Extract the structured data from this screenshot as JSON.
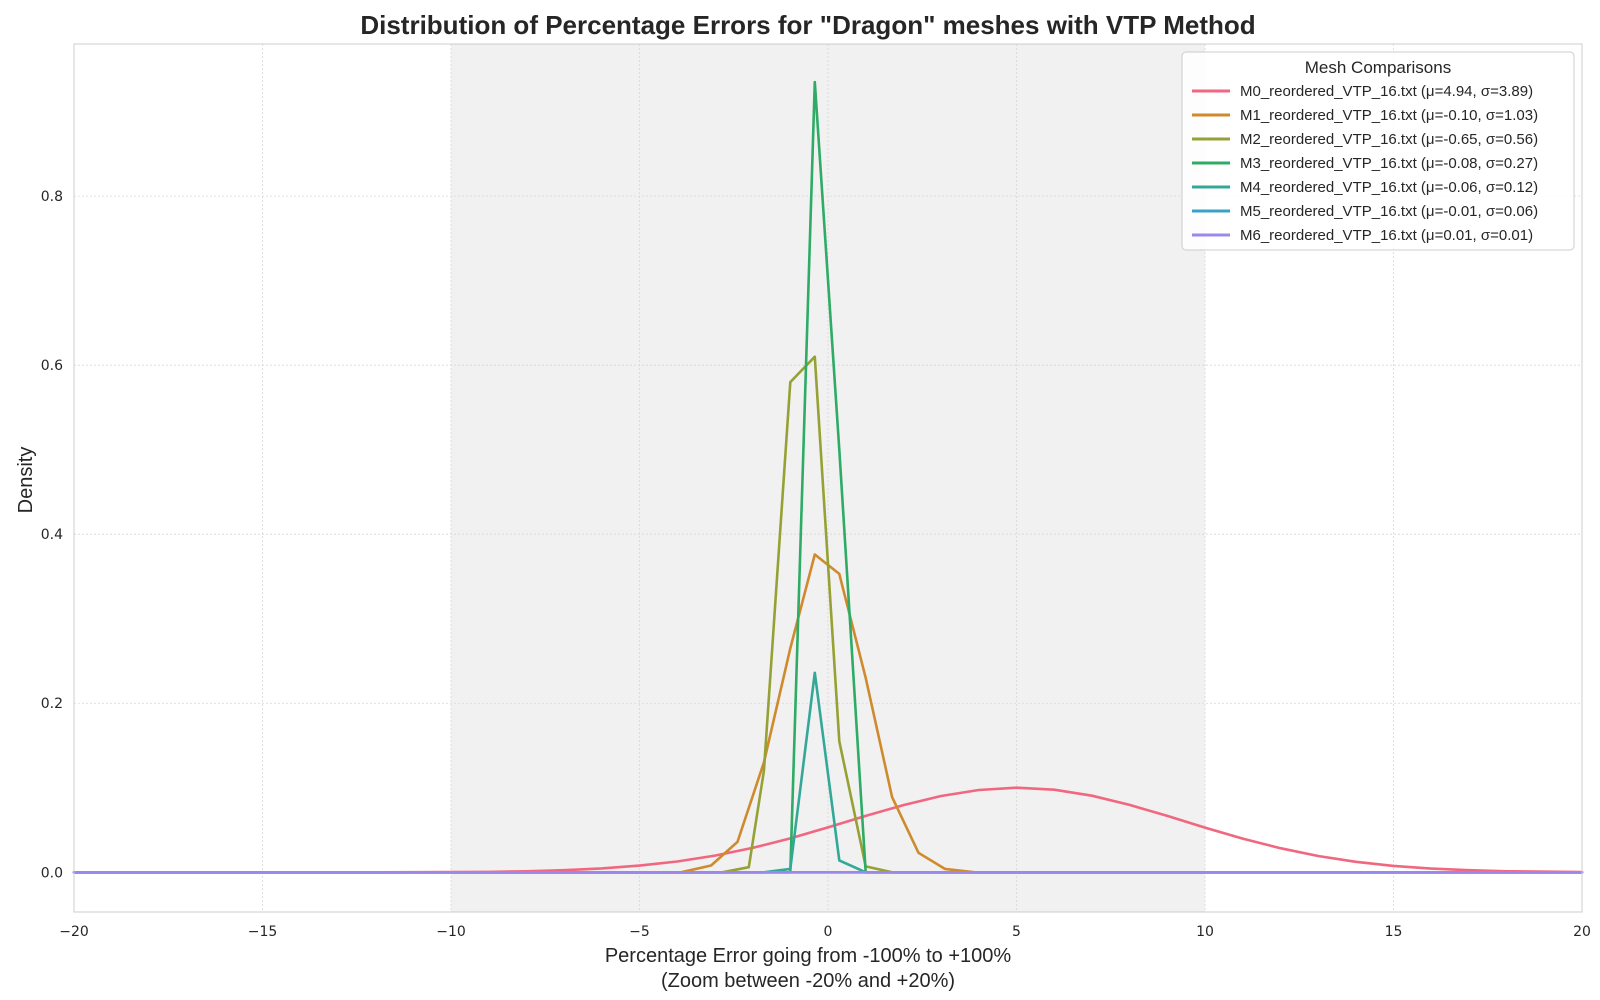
{
  "chart_data": {
    "type": "line",
    "title": "Distribution of Percentage Errors for \"Dragon\" meshes with VTP Method",
    "xlabel_line1": "Percentage Error going from -100% to +100%",
    "xlabel_line2": "(Zoom between -20% and +20%)",
    "ylabel": "Density",
    "xlim": [
      -20,
      20
    ],
    "ylim": [
      -0.047,
      0.98
    ],
    "x_ticks": [
      -20,
      -15,
      -10,
      -5,
      0,
      5,
      10,
      15,
      20
    ],
    "x_tick_labels": [
      "−20",
      "−15",
      "−10",
      "−5",
      "0",
      "5",
      "10",
      "15",
      "20"
    ],
    "y_ticks": [
      0.0,
      0.2,
      0.4,
      0.6,
      0.8
    ],
    "y_tick_labels": [
      "0.0",
      "0.2",
      "0.4",
      "0.6",
      "0.8"
    ],
    "grid": true,
    "shaded_region": [
      -10,
      10
    ],
    "legend_title": "Mesh Comparisons",
    "legend_position": "top-right",
    "series": [
      {
        "name": "M0_reordered_VTP_16.txt (μ=4.94, σ=3.89)",
        "color": "#f0677f",
        "x": [
          -20,
          -18,
          -16,
          -14,
          -12,
          -10,
          -9,
          -8,
          -7,
          -6,
          -5,
          -4,
          -3,
          -2,
          -1,
          0,
          1,
          2,
          3,
          4,
          5,
          6,
          7,
          8,
          9,
          10,
          11,
          12,
          13,
          14,
          15,
          16,
          17,
          18,
          20
        ],
        "y": [
          0.0,
          0.0,
          0.0,
          0.0,
          0.0,
          0.0002,
          0.0005,
          0.0012,
          0.0025,
          0.0046,
          0.0079,
          0.0128,
          0.0197,
          0.0288,
          0.0401,
          0.0531,
          0.0667,
          0.0795,
          0.0902,
          0.0974,
          0.1001,
          0.0977,
          0.0906,
          0.0797,
          0.0667,
          0.0529,
          0.0398,
          0.0285,
          0.0193,
          0.0124,
          0.0076,
          0.0044,
          0.0024,
          0.0012,
          0.0003
        ]
      },
      {
        "name": "M1_reordered_VTP_16.txt (μ=-0.10, σ=1.03)",
        "color": "#cf8a2e",
        "x": [
          -20,
          -3.9,
          -3.1,
          -2.4,
          -1.7,
          -1.0,
          -0.35,
          0.3,
          1.0,
          1.7,
          2.4,
          3.1,
          3.9,
          20
        ],
        "y": [
          0.0,
          0.0,
          0.008,
          0.036,
          0.13,
          0.265,
          0.376,
          0.353,
          0.23,
          0.089,
          0.023,
          0.004,
          0.0,
          0.0
        ]
      },
      {
        "name": "M2_reordered_VTP_16.txt (μ=-0.65, σ=0.56)",
        "color": "#96a135",
        "x": [
          -20,
          -2.8,
          -2.1,
          -1.7,
          -1.0,
          -0.35,
          0.3,
          1.0,
          1.7,
          20
        ],
        "y": [
          0.0,
          0.0,
          0.006,
          0.12,
          0.58,
          0.61,
          0.155,
          0.007,
          0.0,
          0.0
        ]
      },
      {
        "name": "M3_reordered_VTP_16.txt (μ=-0.08, σ=0.27)",
        "color": "#2eab65",
        "x": [
          -20,
          -1.0,
          -0.35,
          0.3,
          1.0,
          20
        ],
        "y": [
          0.0,
          0.0,
          0.935,
          0.5,
          0.0,
          0.0
        ]
      },
      {
        "name": "M4_reordered_VTP_16.txt (μ=-0.06, σ=0.12)",
        "color": "#33a898",
        "x": [
          -20,
          -1.7,
          -1.0,
          -0.35,
          0.3,
          1.0,
          20
        ],
        "y": [
          0.0,
          0.0,
          0.004,
          0.236,
          0.014,
          0.0,
          0.0
        ]
      },
      {
        "name": "M5_reordered_VTP_16.txt (μ=-0.01, σ=0.06)",
        "color": "#38a3c9",
        "x": [
          -20,
          20
        ],
        "y": [
          0.0,
          0.0
        ]
      },
      {
        "name": "M6_reordered_VTP_16.txt (μ=0.01, σ=0.01)",
        "color": "#9c88ed",
        "x": [
          -20,
          20
        ],
        "y": [
          0.0,
          0.0
        ]
      }
    ]
  }
}
